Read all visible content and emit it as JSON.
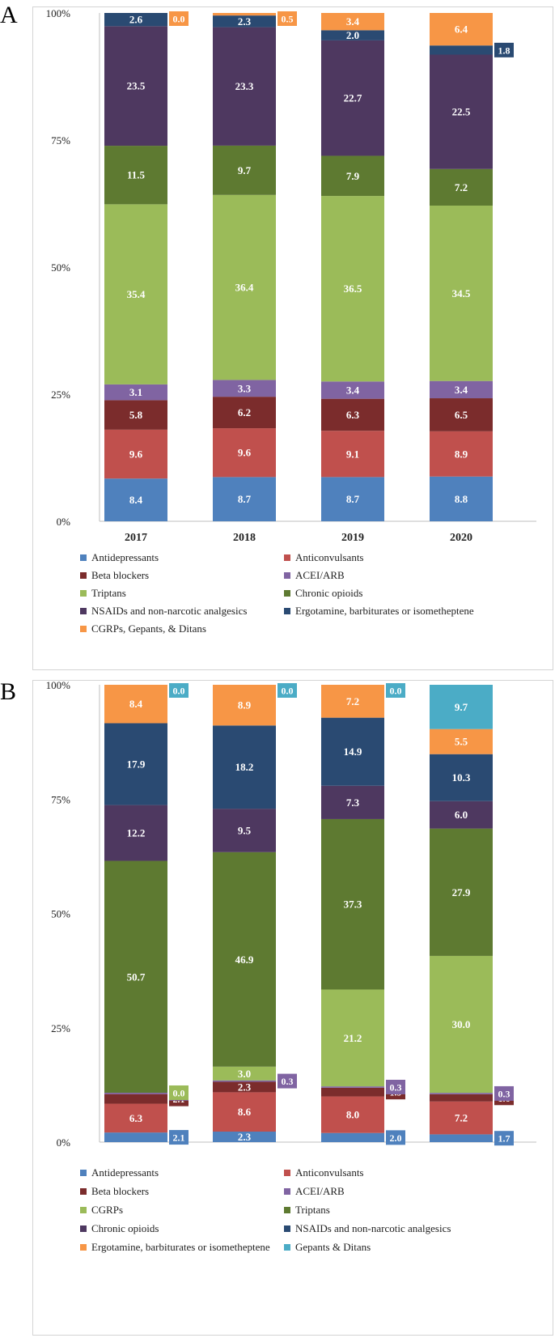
{
  "chart_data": [
    {
      "panel_letter": "A",
      "type": "bar",
      "stacked": true,
      "percent_stacked": true,
      "categories": [
        "2017",
        "2018",
        "2019",
        "2020"
      ],
      "yticks": [
        "0%",
        "25%",
        "50%",
        "75%",
        "100%"
      ],
      "ylim": [
        0,
        100
      ],
      "series": [
        {
          "name": "Antidepressants",
          "color": "#4f81bd",
          "values": [
            8.4,
            8.7,
            8.7,
            8.8
          ]
        },
        {
          "name": "Anticonvulsants",
          "color": "#c0504d",
          "values": [
            9.6,
            9.6,
            9.1,
            8.9
          ]
        },
        {
          "name": "Beta blockers",
          "color": "#7b2c2c",
          "values": [
            5.8,
            6.2,
            6.3,
            6.5
          ]
        },
        {
          "name": "ACEI/ARB",
          "color": "#8064a2",
          "values": [
            3.1,
            3.3,
            3.4,
            3.4
          ]
        },
        {
          "name": "Triptans",
          "color": "#9bbb59",
          "values": [
            35.4,
            36.4,
            36.5,
            34.5
          ]
        },
        {
          "name": "Chronic opioids",
          "color": "#5e7a31",
          "values": [
            11.5,
            9.7,
            7.9,
            7.2
          ]
        },
        {
          "name": "NSAIDs and non-narcotic analgesics",
          "color": "#4e3860",
          "values": [
            23.5,
            23.3,
            22.7,
            22.5
          ]
        },
        {
          "name": "Ergotamine, barbiturates or isometheptene",
          "color": "#2a4a72",
          "values": [
            2.6,
            2.3,
            2.0,
            1.8
          ]
        },
        {
          "name": "CGRPs, Gepants, & Ditans",
          "color": "#f79646",
          "values": [
            0.0,
            0.5,
            3.4,
            6.4
          ]
        }
      ],
      "legend": [
        "Antidepressants",
        "Anticonvulsants",
        "Beta blockers",
        "ACEI/ARB",
        "Triptans",
        "Chronic opioids",
        "NSAIDs and non-narcotic analgesics",
        "Ergotamine, barbiturates or isometheptene",
        "CGRPs, Gepants, & Ditans"
      ]
    },
    {
      "panel_letter": "B",
      "type": "bar",
      "stacked": true,
      "percent_stacked": true,
      "categories": [
        "",
        "",
        "",
        ""
      ],
      "yticks": [
        "0%",
        "25%",
        "50%",
        "75%",
        "100%"
      ],
      "ylim": [
        0,
        100
      ],
      "series": [
        {
          "name": "Antidepressants",
          "color": "#4f81bd",
          "values": [
            2.1,
            2.3,
            2.0,
            1.7
          ]
        },
        {
          "name": "Anticonvulsants",
          "color": "#c0504d",
          "values": [
            6.3,
            8.6,
            8.0,
            7.2
          ]
        },
        {
          "name": "Beta blockers",
          "color": "#7b2c2c",
          "values": [
            2.1,
            2.3,
            1.9,
            1.6
          ]
        },
        {
          "name": "ACEI/ARB",
          "color": "#8064a2",
          "values": [
            0.3,
            0.3,
            0.3,
            0.3
          ]
        },
        {
          "name": "CGRPs",
          "color": "#9bbb59",
          "values": [
            0.0,
            3.0,
            21.2,
            30.0
          ]
        },
        {
          "name": "Triptans",
          "color": "#5e7a31",
          "values": [
            50.7,
            46.9,
            37.3,
            27.9
          ]
        },
        {
          "name": "Chronic opioids",
          "color": "#4e3860",
          "values": [
            12.2,
            9.5,
            7.3,
            6.0
          ]
        },
        {
          "name": "NSAIDs and non-narcotic analgesics",
          "color": "#2a4a72",
          "values": [
            17.9,
            18.2,
            14.9,
            10.3
          ]
        },
        {
          "name": "Ergotamine, barbiturates or isometheptene",
          "color": "#f79646",
          "values": [
            8.4,
            8.9,
            7.2,
            5.5
          ]
        },
        {
          "name": "Gepants & Ditans",
          "color": "#4bacc6",
          "values": [
            0.0,
            0.0,
            0.0,
            9.7
          ]
        }
      ],
      "legend": [
        "Antidepressants",
        "Anticonvulsants",
        "Beta blockers",
        "ACEI/ARB",
        "CGRPs",
        "Triptans",
        "Chronic opioids",
        "NSAIDs and non-narcotic analgesics",
        "Ergotamine, barbiturates or isometheptene",
        "Gepants & Ditans"
      ]
    }
  ]
}
